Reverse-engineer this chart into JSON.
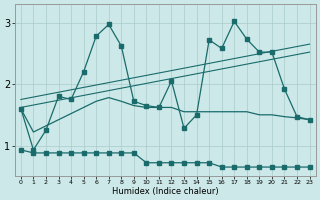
{
  "xlabel": "Humidex (Indice chaleur)",
  "xlim": [
    -0.5,
    23.5
  ],
  "ylim": [
    0.5,
    3.3
  ],
  "yticks": [
    1,
    2,
    3
  ],
  "xticks": [
    0,
    1,
    2,
    3,
    4,
    5,
    6,
    7,
    8,
    9,
    10,
    11,
    12,
    13,
    14,
    15,
    16,
    17,
    18,
    19,
    20,
    21,
    22,
    23
  ],
  "bg_color": "#cce8e8",
  "grid_color": "#aacccc",
  "line_color": "#1a6b6b",
  "line1_x": [
    0,
    1,
    2,
    3,
    4,
    5,
    6,
    7,
    8,
    9,
    10,
    11,
    12,
    13,
    14,
    15,
    16,
    17,
    18,
    19,
    20,
    21,
    22,
    23
  ],
  "line1_y": [
    1.6,
    0.93,
    1.25,
    1.8,
    1.75,
    2.2,
    2.78,
    2.97,
    2.62,
    1.72,
    1.65,
    1.62,
    2.05,
    1.28,
    1.5,
    2.72,
    2.58,
    3.02,
    2.73,
    2.52,
    2.52,
    1.92,
    1.47,
    1.42
  ],
  "line2_x": [
    0,
    1,
    2,
    3,
    4,
    5,
    6,
    7,
    8,
    9,
    10,
    11,
    12,
    13,
    14,
    15,
    16,
    17,
    18,
    19,
    20,
    21,
    22,
    23
  ],
  "line2_y": [
    0.93,
    0.88,
    0.88,
    0.88,
    0.88,
    0.88,
    0.88,
    0.88,
    0.88,
    0.88,
    0.72,
    0.72,
    0.72,
    0.72,
    0.72,
    0.72,
    0.65,
    0.65,
    0.65,
    0.65,
    0.65,
    0.65,
    0.65,
    0.65
  ],
  "line3_x": [
    0,
    23
  ],
  "line3_y": [
    1.62,
    2.52
  ],
  "line4_x": [
    0,
    23
  ],
  "line4_y": [
    1.75,
    2.65
  ],
  "line5_x": [
    0,
    1,
    2,
    3,
    4,
    5,
    6,
    7,
    8,
    9,
    10,
    11,
    12,
    13,
    14,
    15,
    16,
    17,
    18,
    19,
    20,
    21,
    22,
    23
  ],
  "line5_y": [
    1.6,
    1.22,
    1.32,
    1.42,
    1.52,
    1.62,
    1.72,
    1.78,
    1.72,
    1.65,
    1.62,
    1.62,
    1.62,
    1.55,
    1.55,
    1.55,
    1.55,
    1.55,
    1.55,
    1.5,
    1.5,
    1.47,
    1.45,
    1.42
  ]
}
